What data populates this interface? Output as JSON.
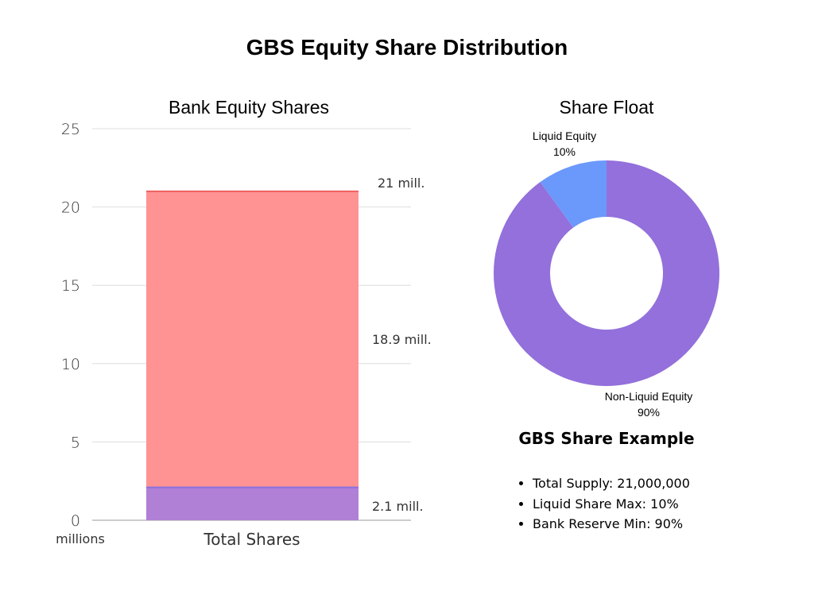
{
  "title": "GBS Equity Share Distribution",
  "chart_data": [
    {
      "type": "bar",
      "stacked": true,
      "title": "Bank Equity Shares",
      "categories": [
        "Total Shares"
      ],
      "xlabel": "",
      "ylabel": "",
      "unit_label": "millions",
      "ylim": [
        0,
        25
      ],
      "yticks": [
        0,
        5,
        10,
        15,
        20,
        25
      ],
      "grid": true,
      "series": [
        {
          "values": [
            2.1
          ],
          "color": "#b07fd6",
          "data_label": "2.1 mill."
        },
        {
          "values": [
            18.9
          ],
          "color": "#ff9393",
          "data_label": "18.9 mill."
        }
      ],
      "total_label": "21 mill.",
      "total": 21,
      "boundary_colors": {
        "lower": "#8a6fe0",
        "upper": "#f06060"
      }
    },
    {
      "type": "pie",
      "donut": true,
      "title": "Share Float",
      "slices": [
        {
          "label": "Liquid Equity",
          "value": 10,
          "pct_label": "10%",
          "color": "#6b98fb"
        },
        {
          "label": "Non-Liquid Equity",
          "value": 90,
          "pct_label": "90%",
          "color": "#9370db"
        }
      ]
    }
  ],
  "example": {
    "title": "GBS Share Example",
    "items": [
      "Total Supply: 21,000,000",
      "Liquid Share Max: 10%",
      "Bank Reserve Min: 90%"
    ]
  }
}
